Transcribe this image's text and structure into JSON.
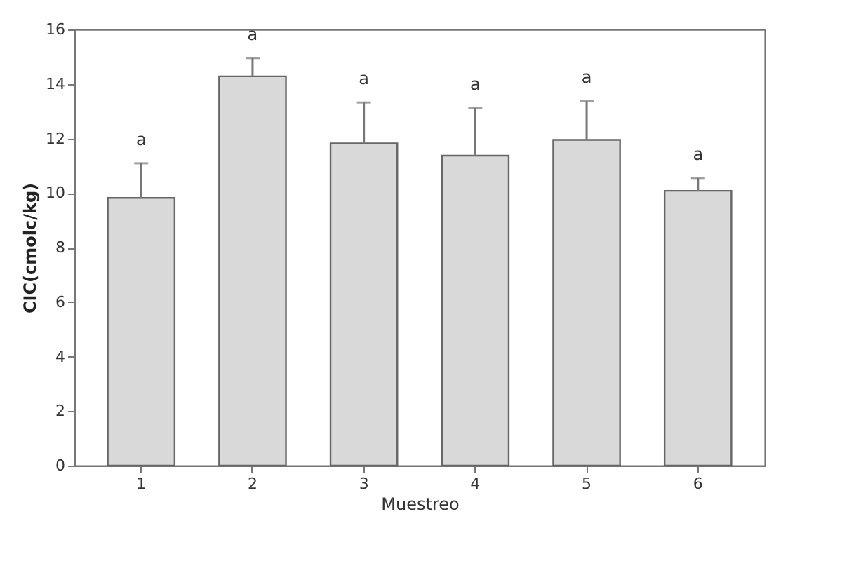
{
  "chart_data": {
    "type": "bar",
    "xlabel": "Muestreo",
    "ylabel": "CIC(cmolc/kg)",
    "categories": [
      "1",
      "2",
      "3",
      "4",
      "5",
      "6"
    ],
    "values": [
      9.82,
      14.28,
      11.82,
      11.37,
      11.95,
      10.08
    ],
    "color": "#d9d9d9",
    "errors": [
      [
        9.82,
        11.09
      ],
      [
        14.28,
        14.95
      ],
      [
        11.82,
        13.32
      ],
      [
        11.37,
        13.12
      ],
      [
        11.95,
        13.37
      ],
      [
        10.08,
        10.55
      ]
    ],
    "ylim": [
      0,
      16
    ],
    "yticks": [
      0,
      2,
      4,
      6,
      8,
      10,
      12,
      14,
      16
    ],
    "grid": false,
    "annotations": [
      "a",
      "a",
      "a",
      "a",
      "a",
      "a"
    ]
  }
}
